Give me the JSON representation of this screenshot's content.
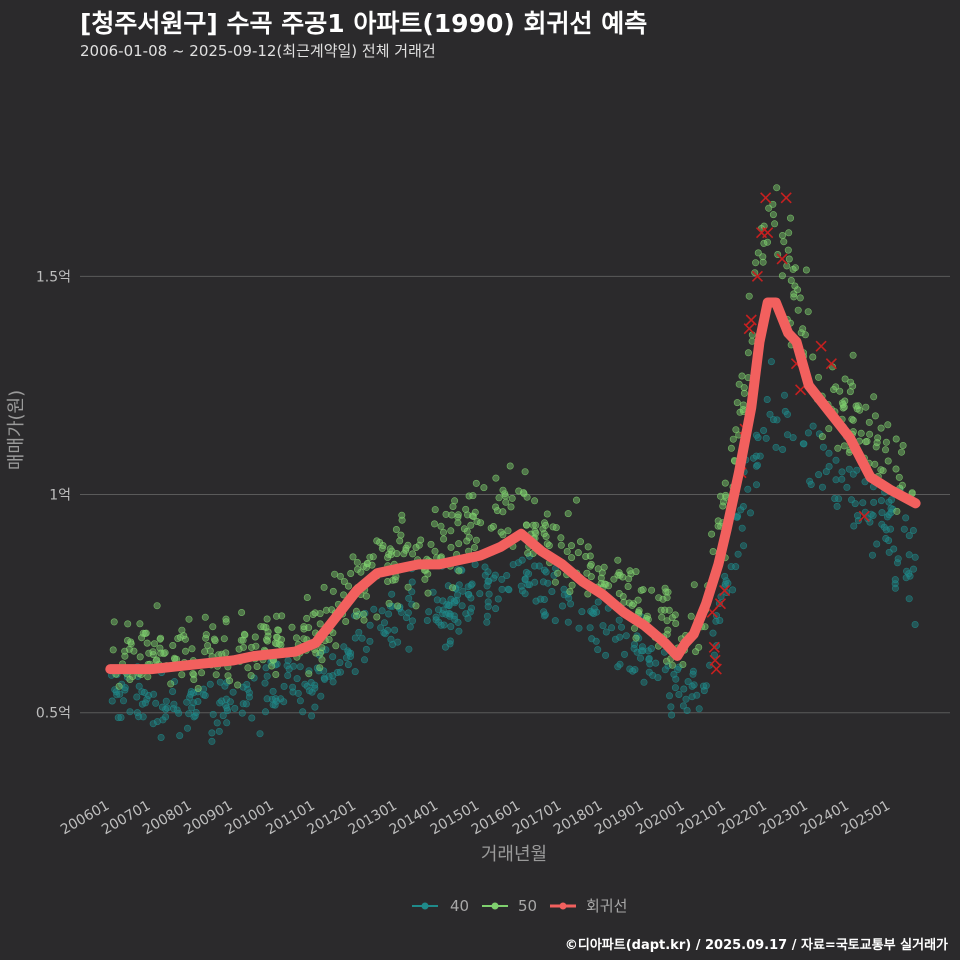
{
  "header": {
    "title": "[청주서원구] 수곡 주공1 아파트(1990) 회귀선 예측",
    "subtitle": "2006-01-08 ~ 2025-09-12(최근계약일) 전체 거래건"
  },
  "footer": {
    "credit": "©디아파트(dapt.kr) / 2025.09.17 / 자료=국토교통부 실거래가"
  },
  "colors": {
    "background": "#2b2a2c",
    "grid": "#5a5a5a",
    "s40": "#1f8a8a",
    "s50": "#7fd06e",
    "regression": "#f2605e",
    "cancelled": "#c62020"
  },
  "chart_data": {
    "type": "scatter",
    "xlabel": "거래년월",
    "ylabel": "매매가(원)",
    "x_ticks": [
      "200601",
      "200701",
      "200801",
      "200901",
      "201001",
      "201101",
      "201201",
      "201301",
      "201401",
      "201501",
      "201601",
      "201701",
      "201801",
      "201901",
      "202001",
      "202101",
      "202201",
      "202301",
      "202401",
      "202501"
    ],
    "y_ticks": [
      {
        "value": 0.5,
        "label": "0.5억"
      },
      {
        "value": 1.0,
        "label": "1억"
      },
      {
        "value": 1.5,
        "label": "1.5억"
      }
    ],
    "xlim": [
      2005.75,
      2025.95
    ],
    "ylim": [
      0.3,
      1.95
    ],
    "y_unit": "억원",
    "grid": "horizontal",
    "legend": {
      "position": "bottom",
      "entries": [
        "40",
        "50",
        "회귀선"
      ]
    },
    "series": [
      {
        "name": "40",
        "anchors": [
          [
            2006.0,
            0.53
          ],
          [
            2007.0,
            0.52
          ],
          [
            2008.0,
            0.51
          ],
          [
            2009.0,
            0.53
          ],
          [
            2010.0,
            0.55
          ],
          [
            2011.0,
            0.56
          ],
          [
            2011.5,
            0.6
          ],
          [
            2012.0,
            0.68
          ],
          [
            2013.0,
            0.72
          ],
          [
            2014.0,
            0.74
          ],
          [
            2015.0,
            0.77
          ],
          [
            2015.8,
            0.82
          ],
          [
            2016.5,
            0.78
          ],
          [
            2017.5,
            0.72
          ],
          [
            2018.5,
            0.66
          ],
          [
            2019.5,
            0.6
          ],
          [
            2019.8,
            0.58
          ],
          [
            2020.2,
            0.53
          ],
          [
            2020.6,
            0.6
          ],
          [
            2021.0,
            0.8
          ],
          [
            2021.4,
            0.95
          ],
          [
            2021.8,
            1.1
          ],
          [
            2022.0,
            1.22
          ],
          [
            2022.3,
            1.18
          ],
          [
            2022.8,
            1.15
          ],
          [
            2023.3,
            1.1
          ],
          [
            2024.0,
            1.0
          ],
          [
            2024.7,
            0.95
          ],
          [
            2025.3,
            0.88
          ],
          [
            2025.6,
            0.8
          ]
        ]
      },
      {
        "name": "50",
        "anchors": [
          [
            2006.0,
            0.65
          ],
          [
            2007.0,
            0.64
          ],
          [
            2008.0,
            0.64
          ],
          [
            2009.0,
            0.65
          ],
          [
            2010.0,
            0.67
          ],
          [
            2011.0,
            0.68
          ],
          [
            2011.5,
            0.72
          ],
          [
            2012.0,
            0.8
          ],
          [
            2013.0,
            0.86
          ],
          [
            2014.0,
            0.88
          ],
          [
            2015.0,
            0.95
          ],
          [
            2015.8,
            0.97
          ],
          [
            2016.5,
            0.93
          ],
          [
            2017.5,
            0.86
          ],
          [
            2018.5,
            0.78
          ],
          [
            2019.5,
            0.7
          ],
          [
            2020.0,
            0.66
          ],
          [
            2020.5,
            0.75
          ],
          [
            2021.0,
            1.0
          ],
          [
            2021.4,
            1.25
          ],
          [
            2021.8,
            1.5
          ],
          [
            2022.0,
            1.6
          ],
          [
            2022.3,
            1.55
          ],
          [
            2022.8,
            1.4
          ],
          [
            2023.3,
            1.25
          ],
          [
            2024.0,
            1.2
          ],
          [
            2024.7,
            1.1
          ],
          [
            2025.3,
            1.05
          ],
          [
            2025.6,
            1.0
          ]
        ]
      },
      {
        "name": "회귀선",
        "x": [
          2006.0,
          2007.0,
          2008.0,
          2009.0,
          2009.5,
          2010.5,
          2011.0,
          2011.5,
          2012.0,
          2012.5,
          2013.0,
          2013.5,
          2014.0,
          2014.5,
          2015.0,
          2015.5,
          2016.0,
          2016.5,
          2017.0,
          2017.5,
          2018.0,
          2018.5,
          2019.0,
          2019.5,
          2019.8,
          2020.0,
          2020.2,
          2020.5,
          2020.8,
          2021.0,
          2021.3,
          2021.6,
          2021.8,
          2022.0,
          2022.2,
          2022.5,
          2022.7,
          2023.0,
          2023.5,
          2024.0,
          2024.5,
          2025.0,
          2025.6
        ],
        "y": [
          0.6,
          0.6,
          0.61,
          0.62,
          0.63,
          0.64,
          0.66,
          0.72,
          0.78,
          0.82,
          0.83,
          0.84,
          0.84,
          0.85,
          0.86,
          0.88,
          0.91,
          0.87,
          0.84,
          0.8,
          0.77,
          0.73,
          0.7,
          0.66,
          0.63,
          0.66,
          0.68,
          0.75,
          0.84,
          0.92,
          1.05,
          1.2,
          1.35,
          1.44,
          1.44,
          1.37,
          1.35,
          1.25,
          1.19,
          1.13,
          1.04,
          1.01,
          0.98
        ]
      }
    ],
    "cancelled_deals": [
      [
        2020.65,
        0.73
      ],
      [
        2020.7,
        0.65
      ],
      [
        2020.72,
        0.62
      ],
      [
        2020.75,
        0.6
      ],
      [
        2020.85,
        0.75
      ],
      [
        2020.95,
        0.78
      ],
      [
        2021.35,
        1.05
      ],
      [
        2021.45,
        1.15
      ],
      [
        2021.55,
        1.38
      ],
      [
        2021.6,
        1.4
      ],
      [
        2021.75,
        1.5
      ],
      [
        2021.85,
        1.6
      ],
      [
        2021.95,
        1.68
      ],
      [
        2022.0,
        1.6
      ],
      [
        2022.35,
        1.54
      ],
      [
        2022.45,
        1.68
      ],
      [
        2022.7,
        1.3
      ],
      [
        2022.8,
        1.24
      ],
      [
        2023.3,
        1.34
      ],
      [
        2023.55,
        1.3
      ],
      [
        2024.35,
        0.95
      ]
    ]
  }
}
